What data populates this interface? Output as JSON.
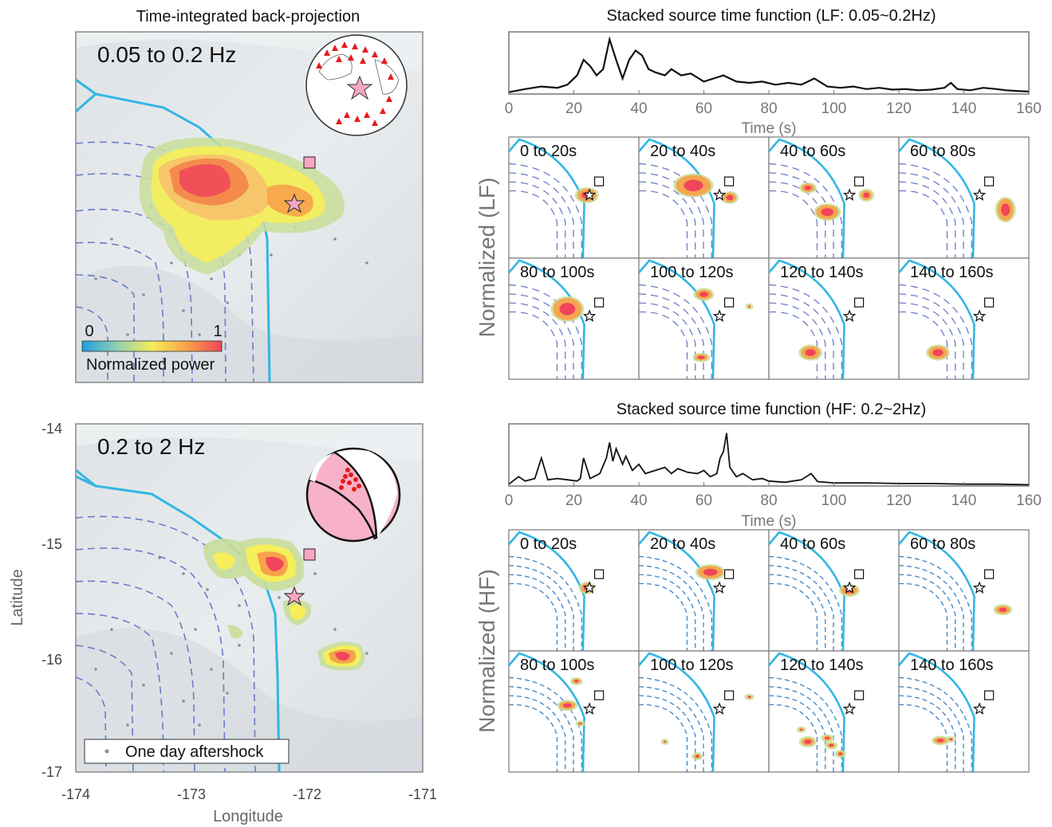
{
  "maps": [
    {
      "title": "Time-integrated back-projection",
      "band_label": "0.05 to 0.2 Hz",
      "colorbar": {
        "min_label": "0",
        "max_label": "1",
        "label": "Normalized power",
        "colors": [
          "#1e9fe0",
          "#8fd0b0",
          "#f6ee5a",
          "#f7a24a",
          "#f0455a"
        ]
      },
      "inset": "globe-station-map"
    },
    {
      "title": "",
      "band_label": "0.2 to 2 Hz",
      "legend": "One day aftershock",
      "inset": "focal-mechanism",
      "xlabel": "Longitude",
      "ylabel": "Latitude",
      "x_ticks": [
        "-174",
        "-173",
        "-172",
        "-171"
      ],
      "y_ticks": [
        "-14",
        "-15",
        "-16",
        "-17"
      ],
      "xlim": [
        -174,
        -171
      ],
      "ylim": [
        -17,
        -14
      ]
    }
  ],
  "chart_data": [
    {
      "type": "line",
      "title": "Stacked source time function (LF: 0.05~0.2Hz)",
      "xlabel": "Time (s)",
      "ylabel": "",
      "xlim": [
        0,
        160
      ],
      "x_ticks": [
        "0",
        "20",
        "40",
        "60",
        "80",
        "100",
        "120",
        "140",
        "160"
      ],
      "x": [
        0,
        5,
        10,
        15,
        18,
        21,
        23,
        25,
        27,
        29,
        31,
        33,
        35,
        37,
        39,
        41,
        43,
        45,
        48,
        50,
        53,
        56,
        60,
        63,
        66,
        70,
        74,
        78,
        82,
        86,
        90,
        94,
        98,
        102,
        106,
        110,
        114,
        118,
        122,
        126,
        130,
        134,
        136,
        138,
        142,
        146,
        150,
        153,
        156,
        160
      ],
      "values": [
        0.03,
        0.08,
        0.12,
        0.1,
        0.15,
        0.3,
        0.55,
        0.45,
        0.3,
        0.4,
        0.88,
        0.55,
        0.25,
        0.55,
        0.7,
        0.62,
        0.4,
        0.35,
        0.3,
        0.4,
        0.3,
        0.33,
        0.2,
        0.25,
        0.3,
        0.2,
        0.18,
        0.2,
        0.15,
        0.18,
        0.15,
        0.25,
        0.12,
        0.1,
        0.12,
        0.08,
        0.1,
        0.07,
        0.08,
        0.06,
        0.07,
        0.1,
        0.18,
        0.08,
        0.06,
        0.1,
        0.08,
        0.06,
        0.05,
        0.04
      ]
    },
    {
      "type": "line",
      "title": "Stacked source time function (HF: 0.2~2Hz)",
      "xlabel": "Time (s)",
      "ylabel": "",
      "xlim": [
        0,
        160
      ],
      "x_ticks": [
        "0",
        "20",
        "40",
        "60",
        "80",
        "100",
        "120",
        "140",
        "160"
      ],
      "x": [
        0,
        3,
        5,
        8,
        10,
        12,
        15,
        18,
        21,
        22,
        23,
        25,
        28,
        30,
        31,
        32,
        33,
        35,
        36,
        38,
        40,
        42,
        45,
        48,
        50,
        52,
        55,
        58,
        60,
        62,
        64,
        65,
        66,
        67,
        68,
        70,
        72,
        75,
        78,
        80,
        85,
        90,
        93,
        95,
        100,
        110,
        120,
        130,
        140,
        150,
        160
      ],
      "values": [
        0.03,
        0.15,
        0.08,
        0.12,
        0.45,
        0.1,
        0.12,
        0.1,
        0.08,
        0.12,
        0.45,
        0.12,
        0.2,
        0.45,
        0.7,
        0.4,
        0.6,
        0.35,
        0.48,
        0.25,
        0.35,
        0.2,
        0.25,
        0.3,
        0.2,
        0.28,
        0.22,
        0.2,
        0.25,
        0.15,
        0.2,
        0.45,
        0.55,
        0.85,
        0.3,
        0.15,
        0.2,
        0.1,
        0.12,
        0.08,
        0.06,
        0.1,
        0.2,
        0.07,
        0.05,
        0.05,
        0.04,
        0.04,
        0.03,
        0.03,
        0.02
      ]
    }
  ],
  "snapshots": {
    "lf_ylabel": "Normalized (LF)",
    "hf_ylabel": "Normalized (HF)",
    "time_windows": [
      "0 to 20s",
      "20 to 40s",
      "40 to 60s",
      "60 to 80s",
      "80 to 100s",
      "100 to 120s",
      "120 to 140s",
      "140 to 160s"
    ]
  }
}
